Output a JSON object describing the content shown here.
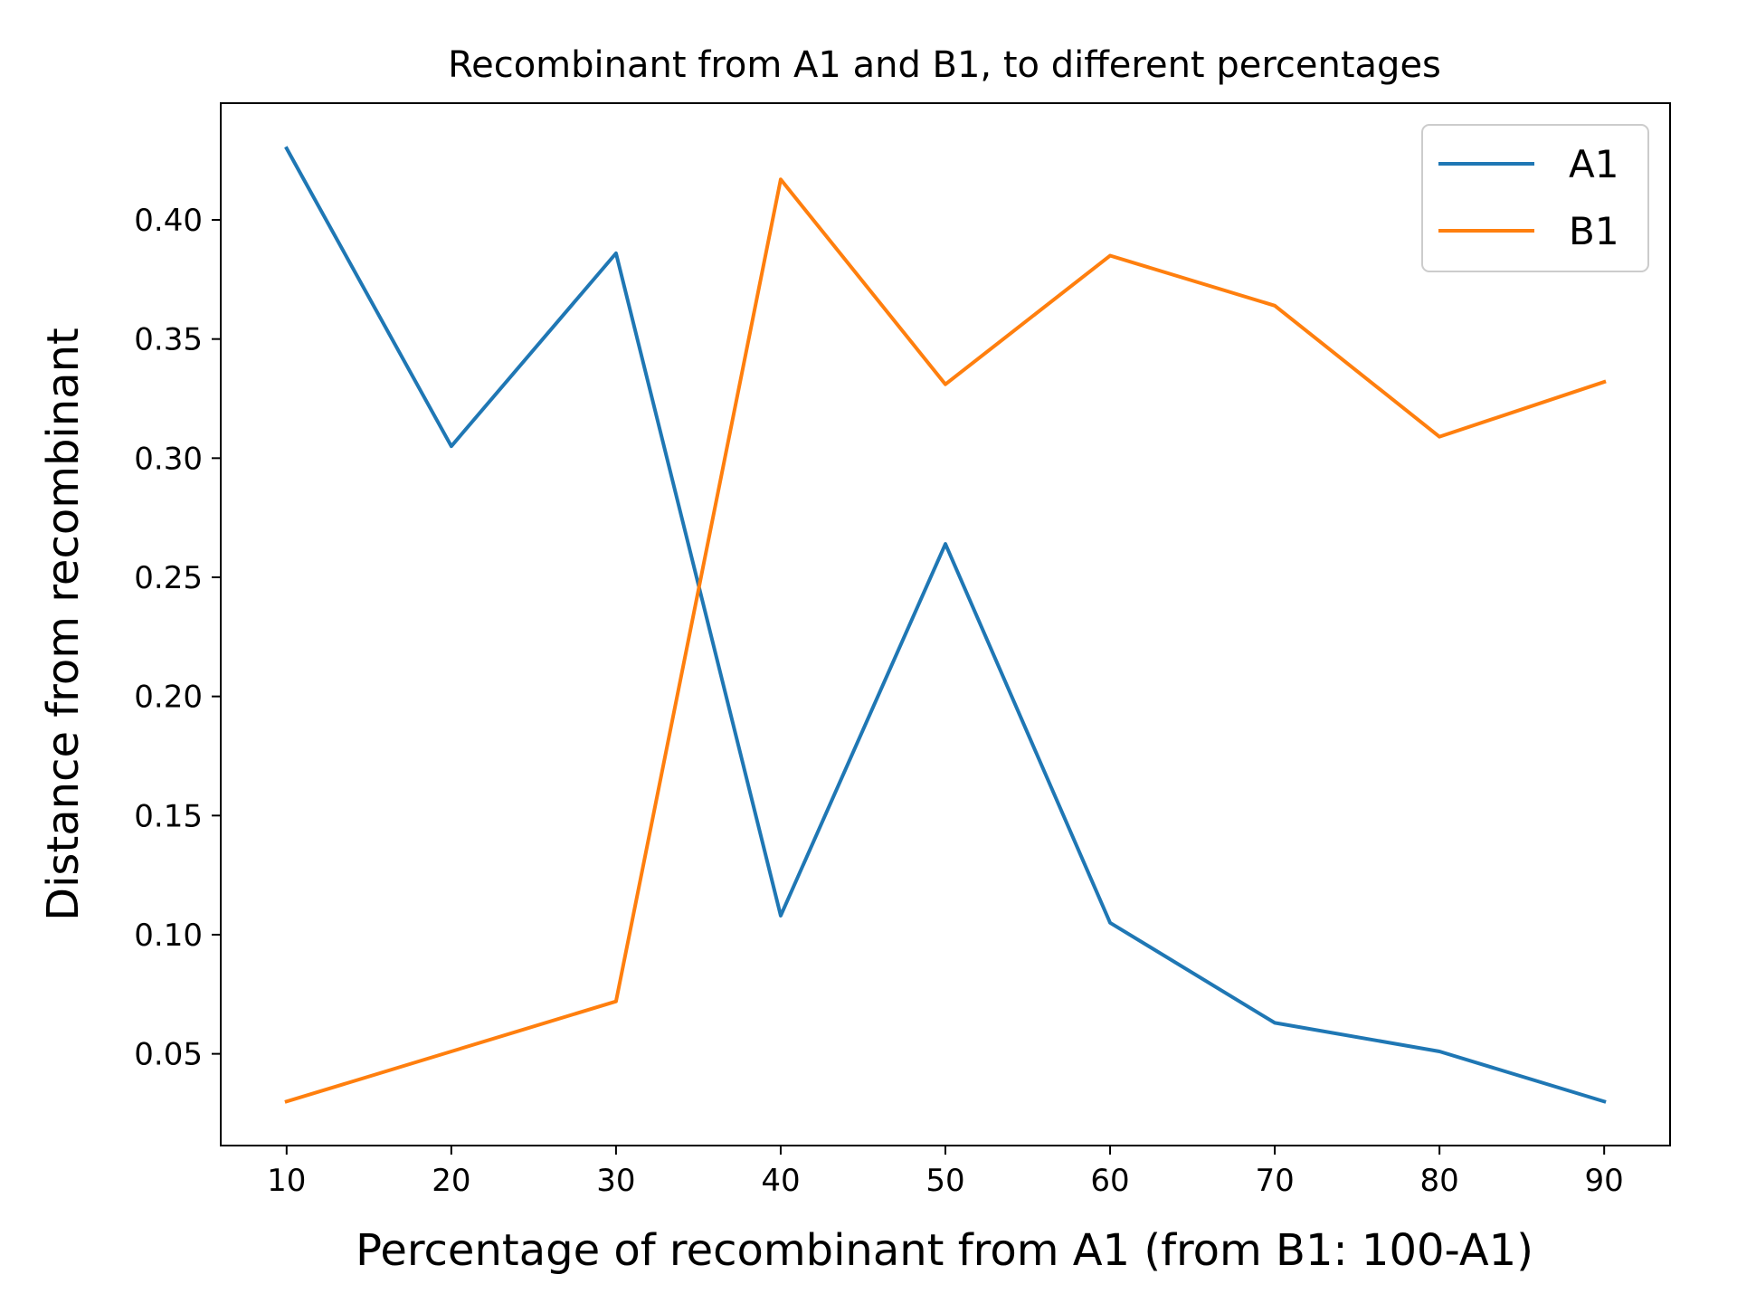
{
  "chart_data": {
    "type": "line",
    "title": "Recombinant from A1 and B1, to different percentages",
    "xlabel": "Percentage of recombinant from A1 (from B1: 100-A1)",
    "ylabel": "Distance from recombinant",
    "x": [
      10,
      20,
      30,
      40,
      50,
      60,
      70,
      80,
      90
    ],
    "xticks": [
      "10",
      "20",
      "30",
      "40",
      "50",
      "60",
      "70",
      "80",
      "90"
    ],
    "yticks": [
      "0.05",
      "0.10",
      "0.15",
      "0.20",
      "0.25",
      "0.30",
      "0.35",
      "0.40"
    ],
    "ytick_values": [
      0.05,
      0.1,
      0.15,
      0.2,
      0.25,
      0.3,
      0.35,
      0.4
    ],
    "xlim": [
      6,
      94
    ],
    "ylim": [
      0.0115,
      0.449
    ],
    "grid": false,
    "legend_position": "top-right",
    "series": [
      {
        "name": "A1",
        "color": "#1f77b4",
        "values": [
          0.43,
          0.305,
          0.386,
          0.108,
          0.264,
          0.105,
          0.063,
          0.051,
          0.03
        ]
      },
      {
        "name": "B1",
        "color": "#ff7f0e",
        "values": [
          0.03,
          0.051,
          0.072,
          0.417,
          0.331,
          0.385,
          0.364,
          0.309,
          0.332
        ]
      }
    ]
  }
}
